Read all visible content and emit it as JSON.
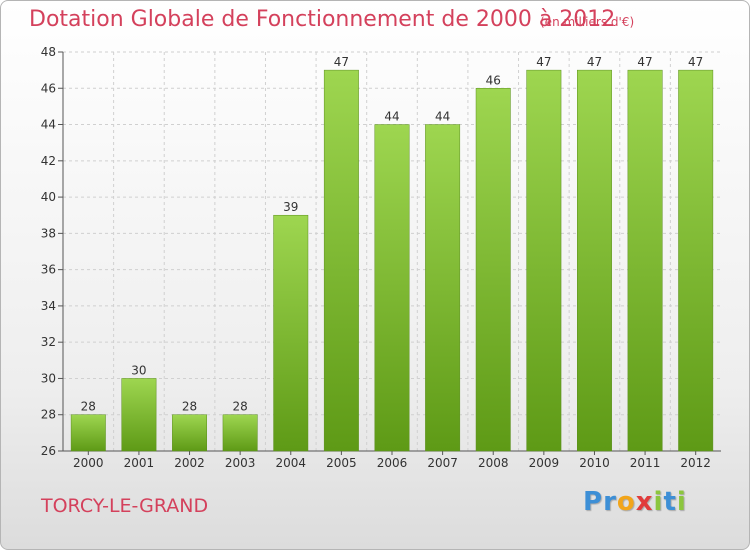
{
  "header": {
    "title": "Dotation Globale de Fonctionnement de 2000 à 2012",
    "subtitle": "(en milliers d'€)"
  },
  "footer": {
    "commune": "TORCY-LE-GRAND",
    "logo_letters": [
      "P",
      "r",
      "o",
      "x",
      "i",
      "t",
      "i"
    ]
  },
  "colors": {
    "title": "#d4415c",
    "bar_top": "#9ed650",
    "bar_bottom": "#5e9a16",
    "grid": "#d0d0d0"
  },
  "chart_data": {
    "type": "bar",
    "title": "Dotation Globale de Fonctionnement de 2000 à 2012",
    "subtitle": "(en milliers d'€)",
    "categories": [
      "2000",
      "2001",
      "2002",
      "2003",
      "2004",
      "2005",
      "2006",
      "2007",
      "2008",
      "2009",
      "2010",
      "2011",
      "2012"
    ],
    "values": [
      28,
      30,
      28,
      28,
      39,
      47,
      44,
      44,
      46,
      47,
      47,
      47,
      47
    ],
    "ylim": [
      26,
      48
    ],
    "yticks": [
      26,
      28,
      30,
      32,
      34,
      36,
      38,
      40,
      42,
      44,
      46,
      48
    ],
    "grid": true,
    "xlabel": "",
    "ylabel": ""
  }
}
